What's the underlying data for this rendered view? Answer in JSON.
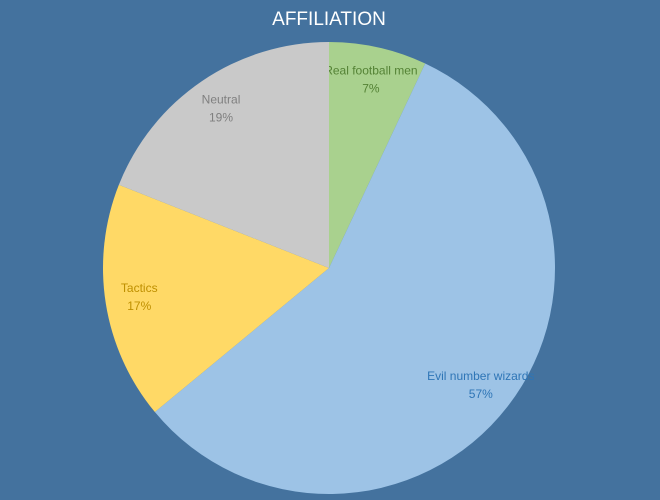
{
  "chart_data": {
    "type": "pie",
    "title": "AFFILIATION",
    "categories": [
      "Real football men",
      "Evil number wizards",
      "Tactics",
      "Neutral"
    ],
    "values": [
      7,
      57,
      17,
      19
    ],
    "value_labels": [
      "7%",
      "57%",
      "17%",
      "19%"
    ],
    "colors": [
      "#a9d18e",
      "#9dc3e6",
      "#ffd966",
      "#c9c9c9"
    ],
    "label_colors": [
      "#548235",
      "#2e75b6",
      "#bf9000",
      "#7f7f7f"
    ]
  }
}
